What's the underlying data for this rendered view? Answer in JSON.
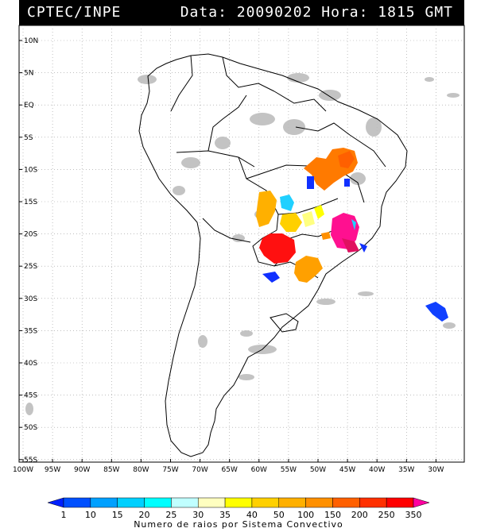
{
  "header": {
    "left": "CPTEC/INPE",
    "right": "Data: 20090202 Hora: 1815 GMT"
  },
  "map": {
    "lat_labels": [
      "10N",
      "5N",
      "EQ",
      "5S",
      "10S",
      "15S",
      "20S",
      "25S",
      "30S",
      "35S",
      "40S",
      "45S",
      "50S",
      "55S"
    ],
    "lon_labels": [
      "100W",
      "95W",
      "90W",
      "85W",
      "80W",
      "75W",
      "70W",
      "65W",
      "60W",
      "55W",
      "50W",
      "45W",
      "40W",
      "35W",
      "30W"
    ],
    "land_color": "#ffffff",
    "cloud_color": "#b8b8b8"
  },
  "colorbar": {
    "labels": [
      "1",
      "10",
      "15",
      "20",
      "25",
      "30",
      "35",
      "40",
      "50",
      "100",
      "150",
      "200",
      "250",
      "350"
    ],
    "colors": [
      "#0020ff",
      "#0050ff",
      "#00a0ff",
      "#00d0ff",
      "#00ffff",
      "#c0ffff",
      "#ffffc0",
      "#ffff00",
      "#ffd000",
      "#ffb000",
      "#ff9000",
      "#ff6000",
      "#ff3000",
      "#ff0000",
      "#ff00a0"
    ],
    "title": "Numero de raios por Sistema Convectivo"
  }
}
